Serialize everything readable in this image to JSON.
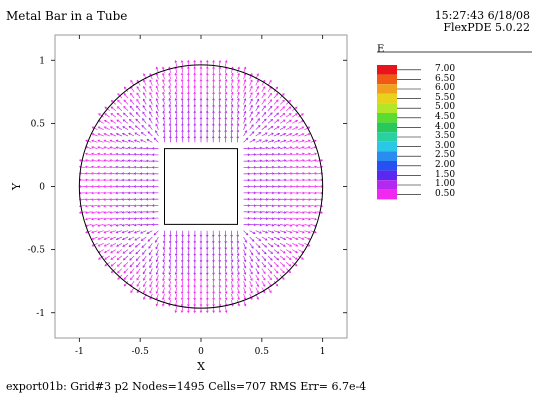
{
  "header": {
    "title": "Metal Bar in a Tube",
    "timestamp": "15:27:43 6/18/08",
    "software": "FlexPDE 5.0.22"
  },
  "footer": {
    "status": "export01b:  Grid#3  p2  Nodes=1495 Cells=707 RMS Err= 6.7e-4"
  },
  "legend": {
    "title": "E",
    "levels": [
      {
        "label": "7.00",
        "color": "#e8141b"
      },
      {
        "label": "6.50",
        "color": "#f05a14"
      },
      {
        "label": "6.00",
        "color": "#f0a01e"
      },
      {
        "label": "5.50",
        "color": "#e8d21e"
      },
      {
        "label": "5.00",
        "color": "#b4e628"
      },
      {
        "label": "4.50",
        "color": "#5adc32"
      },
      {
        "label": "4.00",
        "color": "#28c85a"
      },
      {
        "label": "3.50",
        "color": "#28d2a0"
      },
      {
        "label": "3.00",
        "color": "#28c8e6"
      },
      {
        "label": "2.50",
        "color": "#288cf0"
      },
      {
        "label": "2.00",
        "color": "#2850f0"
      },
      {
        "label": "1.50",
        "color": "#5a28f0"
      },
      {
        "label": "1.00",
        "color": "#b428f0"
      },
      {
        "label": "0.50",
        "color": "#f028f0"
      }
    ]
  },
  "chart_data": {
    "type": "vector-field",
    "title": "Metal Bar in a Tube",
    "xlabel": "X",
    "ylabel": "Y",
    "xlim": [
      -1.2,
      1.2
    ],
    "ylim": [
      -1.2,
      1.2
    ],
    "x_ticks": [
      "-1",
      "-0.5",
      "0",
      "0.5",
      "1"
    ],
    "y_ticks": [
      "1",
      "0.5",
      "0",
      "-0.5",
      "-1"
    ],
    "x_tick_values": [
      -1,
      -0.5,
      0,
      0.5,
      1
    ],
    "y_tick_values": [
      1,
      0.5,
      0,
      -0.5,
      -1
    ],
    "outer_circle_radius": 1.0,
    "inner_square_half_width": 0.3,
    "field_description": "radial electric field E pointing outward from square bar to circular tube, magnitude mostly 0.5-1.5"
  }
}
